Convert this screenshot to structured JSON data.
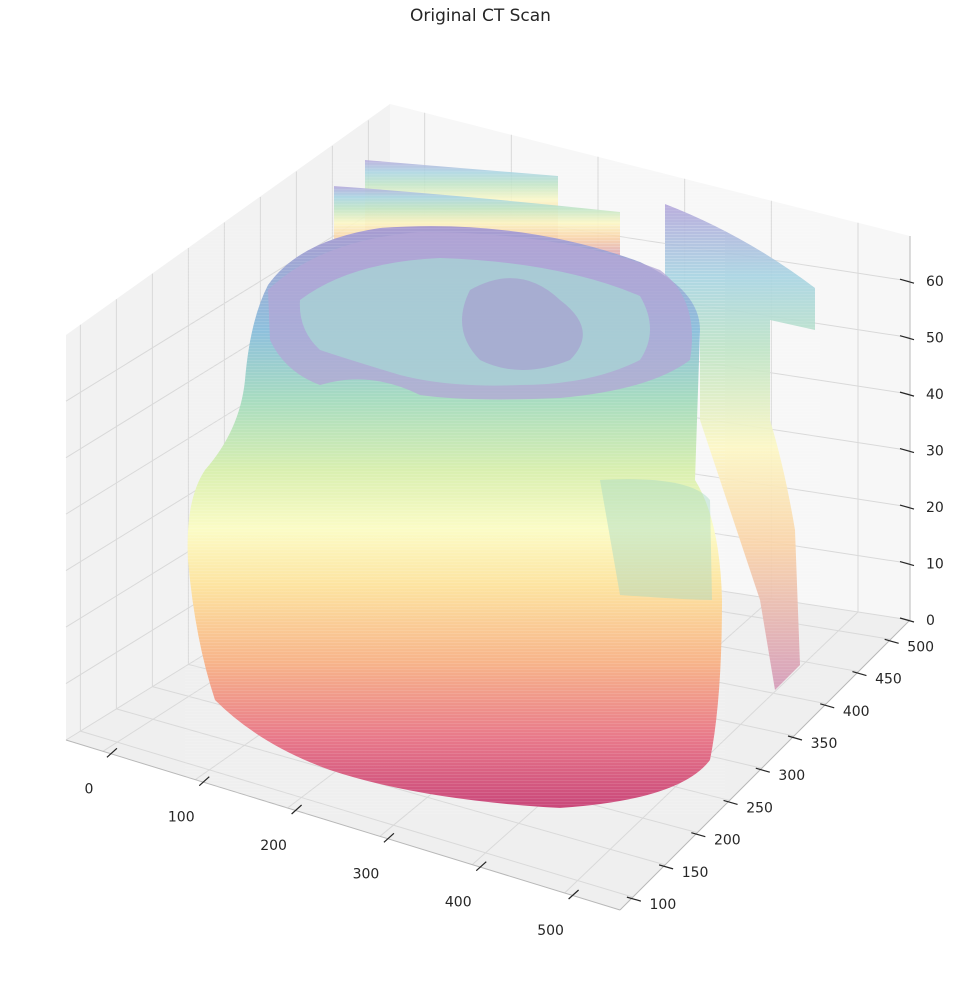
{
  "chart_data": {
    "type": "scatter",
    "subtype": "3d-voxel-surface",
    "title": "Original CT Scan",
    "xlabel": "",
    "ylabel": "",
    "zlabel": "",
    "x_ticks": [
      "0",
      "100",
      "200",
      "300",
      "400",
      "500"
    ],
    "y_ticks": [
      "100",
      "150",
      "200",
      "250",
      "300",
      "350",
      "400",
      "450",
      "500"
    ],
    "z_ticks": [
      "0",
      "10",
      "20",
      "30",
      "40",
      "50",
      "60"
    ],
    "xlim": [
      -40,
      560
    ],
    "ylim": [
      80,
      530
    ],
    "zlim": [
      0,
      68
    ],
    "grid": true,
    "colormap": "Spectral",
    "colormap_stops": [
      "#9e0142",
      "#d53e4f",
      "#f46d43",
      "#fdae61",
      "#fee08b",
      "#ffffbf",
      "#e6f598",
      "#abdda4",
      "#66c2a5",
      "#3288bd",
      "#5e4fa2"
    ],
    "pane_color": "#f2f2f2",
    "grid_color": "#d9d9d9"
  }
}
